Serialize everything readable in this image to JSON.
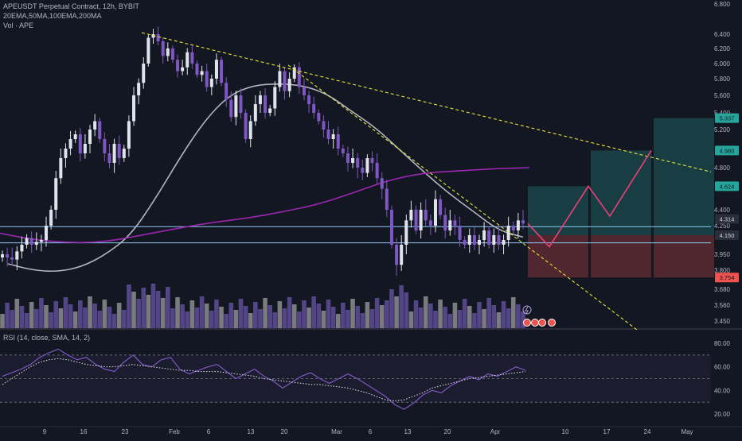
{
  "header": {
    "title": "APEUSDT Perpetual Contract, 12h, BYBIT",
    "ma_legend": "20EMA,50MA,100EMA,200MA",
    "vol_legend": "Vol · APE",
    "rsi_legend": "RSI (14, close, SMA, 14, 2)"
  },
  "chart_data": [
    {
      "type": "candlestick",
      "title": "",
      "price_axis_ticks": [
        "6.800",
        "6.400",
        "6.200",
        "6.000",
        "5.800",
        "5.600",
        "5.400",
        "5.200",
        "4.800",
        "4.400",
        "4.250",
        "3.950",
        "3.800",
        "3.680",
        "3.560",
        "3.450"
      ],
      "time_axis_ticks": [
        "9",
        "16",
        "23",
        "Feb",
        "6",
        "13",
        "20",
        "Mar",
        "6",
        "13",
        "20",
        "Apr",
        "10",
        "17",
        "24",
        "May"
      ],
      "ylim": [
        3.4,
        6.85
      ],
      "price_tags": [
        {
          "value": "5.337",
          "color": "#26a69a"
        },
        {
          "value": "4.980",
          "color": "#26a69a"
        },
        {
          "value": "4.624",
          "color": "#26a69a"
        },
        {
          "value": "4.314",
          "color": "#2a2e39"
        },
        {
          "value": "4.150",
          "color": "#2a2e39"
        },
        {
          "value": "3.754",
          "color": "#ef5350"
        }
      ],
      "horizontal_levels": [
        4.24,
        4.07
      ],
      "trendlines": [
        {
          "from": [
            "Jan 26",
            6.42
          ],
          "to": [
            "Apr 30",
            4.76
          ]
        },
        {
          "from": [
            "Feb 20",
            5.98
          ],
          "to": [
            "Apr 21",
            3.4
          ]
        }
      ],
      "target_zones": [
        {
          "top": 4.624,
          "bottom": 4.0,
          "stop": 3.754
        },
        {
          "top": 4.98,
          "bottom": 4.0,
          "stop": 3.754
        },
        {
          "top": 5.337,
          "bottom": 4.0,
          "stop": 3.754
        }
      ],
      "projection_path": [
        4.27,
        4.03,
        4.624,
        4.34,
        4.98
      ],
      "series": [
        {
          "name": "50MA",
          "color": "#b2b5be",
          "values": [
            3.86,
            3.8,
            3.79,
            3.83,
            3.95,
            4.15,
            4.5,
            4.9,
            5.3,
            5.6,
            5.72,
            5.74,
            5.72,
            5.62,
            5.42,
            5.22,
            4.98,
            4.75,
            4.55,
            4.38,
            4.2,
            4.13
          ]
        },
        {
          "name": "200MA",
          "color": "#9c27b0",
          "values": [
            4.17,
            4.1,
            4.07,
            4.08,
            4.15,
            4.22,
            4.28,
            4.32,
            4.38,
            4.45,
            4.56,
            4.68,
            4.75,
            4.77,
            4.79,
            4.8
          ]
        }
      ],
      "closes": [
        3.95,
        3.92,
        3.9,
        3.98,
        4.05,
        4.12,
        4.05,
        4.08,
        4.1,
        4.25,
        4.4,
        4.7,
        4.9,
        5.0,
        5.1,
        5.15,
        4.95,
        5.05,
        5.2,
        5.3,
        5.1,
        4.95,
        4.85,
        5.05,
        4.9,
        5.0,
        5.3,
        5.6,
        5.75,
        6.0,
        6.35,
        6.4,
        6.3,
        6.1,
        6.2,
        6.05,
        5.9,
        5.95,
        6.15,
        6.0,
        5.85,
        5.9,
        5.7,
        5.8,
        6.05,
        5.75,
        5.55,
        5.35,
        5.6,
        5.4,
        5.1,
        5.3,
        5.5,
        5.6,
        5.4,
        5.45,
        5.7,
        5.9,
        5.65,
        5.8,
        5.95,
        5.7,
        5.6,
        5.5,
        5.4,
        5.3,
        5.2,
        5.1,
        5.15,
        5.0,
        4.95,
        4.85,
        4.9,
        4.8,
        4.75,
        4.9,
        4.85,
        4.7,
        4.6,
        4.4,
        4.05,
        3.85,
        4.05,
        4.3,
        4.4,
        4.2,
        4.4,
        4.3,
        4.25,
        4.5,
        4.35,
        4.2,
        4.3,
        4.25,
        4.1,
        4.05,
        4.15,
        4.05,
        4.1,
        4.2,
        4.05,
        4.15,
        4.05,
        4.1,
        4.25,
        4.2,
        4.3,
        4.27
      ]
    },
    {
      "type": "bar",
      "name": "Volume"
    },
    {
      "type": "line",
      "name": "RSI",
      "rsi_ticks": [
        "80.00",
        "60.00",
        "40.00",
        "20.00"
      ],
      "ylim": [
        15,
        90
      ],
      "bands": [
        70,
        50,
        30
      ],
      "series": [
        {
          "name": "RSI",
          "color": "#7e57c2",
          "values": [
            52,
            55,
            58,
            62,
            68,
            72,
            75,
            70,
            66,
            68,
            62,
            58,
            56,
            64,
            70,
            62,
            60,
            66,
            68,
            58,
            54,
            57,
            60,
            62,
            56,
            50,
            54,
            58,
            52,
            48,
            42,
            47,
            52,
            55,
            50,
            46,
            50,
            54,
            50,
            45,
            40,
            35,
            28,
            24,
            29,
            36,
            40,
            38,
            44,
            48,
            52,
            49,
            54,
            52,
            56,
            60,
            57
          ]
        },
        {
          "name": "SMA",
          "color": "#e0e3eb",
          "values": [
            45,
            50,
            55,
            60,
            64,
            66,
            67,
            66,
            64,
            62,
            61,
            60,
            60,
            61,
            62,
            61,
            60,
            59,
            58,
            57,
            57,
            56,
            56,
            56,
            55,
            54,
            53,
            52,
            50,
            49,
            48,
            47,
            46,
            45,
            45,
            44,
            43,
            42,
            40,
            38,
            35,
            32,
            31,
            32,
            35,
            38,
            42,
            44,
            46,
            48,
            50,
            51,
            52,
            53,
            54,
            55,
            56
          ]
        }
      ]
    }
  ]
}
